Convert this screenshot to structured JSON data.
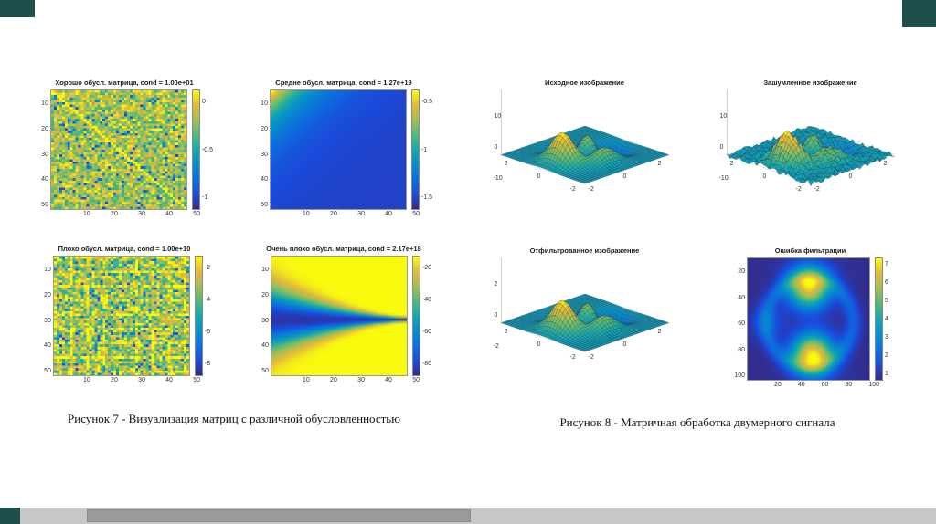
{
  "slide": {
    "figure7": {
      "caption": "Рисунок 7 - Визуализация матриц с различной обусловленностью",
      "subplots": [
        {
          "title": "Хорошо обусл. матрица, cond = 1.00e+01",
          "x_ticks": [
            "10",
            "20",
            "30",
            "40",
            "50"
          ],
          "y_ticks": [
            "10",
            "20",
            "30",
            "40",
            "50"
          ],
          "colorbar_ticks": [
            "0",
            "-0.5",
            "-1"
          ]
        },
        {
          "title": "Средне обусл. матрица, cond = 1.27e+19",
          "x_ticks": [
            "10",
            "20",
            "30",
            "40",
            "50"
          ],
          "y_ticks": [
            "10",
            "20",
            "30",
            "40",
            "50"
          ],
          "colorbar_ticks": [
            "-0.5",
            "-1",
            "-1.5"
          ]
        },
        {
          "title": "Плохо обусл. матрица, cond = 1.00e+10",
          "x_ticks": [
            "10",
            "20",
            "30",
            "40",
            "50"
          ],
          "y_ticks": [
            "10",
            "20",
            "30",
            "40",
            "50"
          ],
          "colorbar_ticks": [
            "-2",
            "-4",
            "-6",
            "-8"
          ]
        },
        {
          "title": "Очень плохо обусл. матрица, cond = 2.17e+18",
          "x_ticks": [
            "10",
            "20",
            "30",
            "40",
            "50"
          ],
          "y_ticks": [
            "10",
            "20",
            "30",
            "40",
            "50"
          ],
          "colorbar_ticks": [
            "-20",
            "-40",
            "-60",
            "-80"
          ]
        }
      ]
    },
    "figure8": {
      "caption": "Рисунок 8 - Матричная обработка двумерного сигнала",
      "subplots": [
        {
          "title": "Исходное изображение",
          "z_ticks": [
            "10",
            "0",
            "-10"
          ],
          "y_ticks": [
            "2",
            "0",
            "-2"
          ],
          "x_ticks": [
            "-2",
            "0",
            "2"
          ]
        },
        {
          "title": "Зашумленное изображение",
          "z_ticks": [
            "10",
            "0",
            "-10"
          ],
          "y_ticks": [
            "2",
            "0",
            "-2"
          ],
          "x_ticks": [
            "-2",
            "0",
            "2"
          ]
        },
        {
          "title": "Отфильтрованное изображение",
          "z_ticks": [
            "2",
            "0",
            "-2"
          ],
          "y_ticks": [
            "2",
            "0",
            "-2"
          ],
          "x_ticks": [
            "-2",
            "0",
            "2"
          ]
        },
        {
          "title": "Ошибка фильтрации",
          "x_ticks": [
            "20",
            "40",
            "60",
            "80",
            "100"
          ],
          "y_ticks": [
            "20",
            "40",
            "60",
            "80",
            "100"
          ],
          "colorbar_ticks": [
            "7",
            "6",
            "5",
            "4",
            "3",
            "2",
            "1"
          ]
        }
      ]
    }
  },
  "chart_data": [
    {
      "type": "heatmap",
      "title": "Хорошо обусл. матрица, cond = 1.00e+01",
      "cond": "1.00e+01",
      "x_ticks": [
        10,
        20,
        30,
        40,
        50
      ],
      "y_ticks": [
        10,
        20,
        30,
        40,
        50
      ],
      "colorbar_range": [
        -1,
        0
      ],
      "colormap": "parula",
      "pattern": "uniform random noise matrix with bright main diagonal"
    },
    {
      "type": "heatmap",
      "title": "Средне обусл. матрица, cond = 1.27e+19",
      "cond": "1.27e+19",
      "x_ticks": [
        10,
        20,
        30,
        40,
        50
      ],
      "y_ticks": [
        10,
        20,
        30,
        40,
        50
      ],
      "colorbar_range": [
        -1.5,
        -0.5
      ],
      "colormap": "parula",
      "pattern": "smooth field, bright yellow top-left corner decaying to dark blue"
    },
    {
      "type": "heatmap",
      "title": "Плохо обусл. матрица, cond = 1.00e+10",
      "cond": "1.00e+10",
      "x_ticks": [
        10,
        20,
        30,
        40,
        50
      ],
      "y_ticks": [
        10,
        20,
        30,
        40,
        50
      ],
      "colorbar_range": [
        -8,
        -2
      ],
      "colormap": "parula",
      "pattern": "structured random noise with grid-like bright lines"
    },
    {
      "type": "heatmap",
      "title": "Очень плохо обусл. матрица, cond = 2.17e+18",
      "cond": "2.17e+18",
      "x_ticks": [
        10,
        20,
        30,
        40,
        50
      ],
      "y_ticks": [
        10,
        20,
        30,
        40,
        50
      ],
      "colorbar_range": [
        -80,
        -20
      ],
      "colormap": "parula",
      "pattern": "bright yellow field with dark blue horizontal wedge at mid-height narrowing to the right"
    },
    {
      "type": "heatmap",
      "projection": "3d-surface",
      "title": "Исходное изображение",
      "x_range": [
        -2,
        2
      ],
      "y_range": [
        -2,
        2
      ],
      "z_ticks": [
        10,
        0,
        -10
      ],
      "pattern": "smooth peaks-style surface"
    },
    {
      "type": "heatmap",
      "projection": "3d-surface",
      "title": "Зашумленное изображение",
      "x_range": [
        -2,
        2
      ],
      "y_range": [
        -2,
        2
      ],
      "z_ticks": [
        10,
        0,
        -10
      ],
      "pattern": "peaks surface with additive random noise"
    },
    {
      "type": "heatmap",
      "projection": "3d-surface",
      "title": "Отфильтрованное изображение",
      "x_range": [
        -2,
        2
      ],
      "y_range": [
        -2,
        2
      ],
      "z_ticks": [
        2,
        0,
        -2
      ],
      "pattern": "smoothed filtered peaks surface"
    },
    {
      "type": "heatmap",
      "title": "Ошибка фильтрации",
      "x_ticks": [
        20,
        40,
        60,
        80,
        100
      ],
      "y_ticks": [
        20,
        40,
        60,
        80,
        100
      ],
      "colorbar_range": [
        1,
        7
      ],
      "colormap": "parula",
      "pattern": "dark blue background with bright yellow blob top-center and bottom-center, faint ring contours"
    }
  ],
  "colors": {
    "accent": "#1f4f4a",
    "colormap_low": "#352a87",
    "colormap_high": "#f9fb0e",
    "scroll_track": "#c7c7c7",
    "scroll_thumb": "#9a9a9a"
  }
}
